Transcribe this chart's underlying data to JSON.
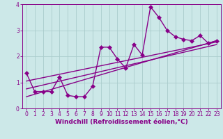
{
  "xlabel": "Windchill (Refroidissement éolien,°C)",
  "ylabel": "",
  "background_color": "#cce8e8",
  "line_color": "#880088",
  "marker": "D",
  "x_data": [
    0,
    1,
    2,
    3,
    4,
    5,
    6,
    7,
    8,
    9,
    10,
    11,
    12,
    13,
    14,
    15,
    16,
    17,
    18,
    19,
    20,
    21,
    22,
    23
  ],
  "y_data": [
    1.35,
    0.65,
    0.65,
    0.65,
    1.2,
    0.5,
    0.45,
    0.45,
    0.85,
    2.35,
    2.35,
    1.9,
    1.55,
    2.45,
    2.05,
    3.9,
    3.5,
    3.0,
    2.75,
    2.65,
    2.6,
    2.8,
    2.5,
    2.6
  ],
  "reg_lines": [
    {
      "x": [
        0,
        23
      ],
      "y": [
        0.45,
        2.6
      ]
    },
    {
      "x": [
        0,
        23
      ],
      "y": [
        0.75,
        2.45
      ]
    },
    {
      "x": [
        0,
        23
      ],
      "y": [
        1.05,
        2.55
      ]
    }
  ],
  "xlim": [
    -0.5,
    23.5
  ],
  "ylim": [
    0,
    4
  ],
  "xticks": [
    0,
    1,
    2,
    3,
    4,
    5,
    6,
    7,
    8,
    9,
    10,
    11,
    12,
    13,
    14,
    15,
    16,
    17,
    18,
    19,
    20,
    21,
    22,
    23
  ],
  "yticks": [
    0,
    1,
    2,
    3,
    4
  ],
  "grid_color": "#aacccc",
  "marker_size": 3,
  "line_width": 1.0,
  "tick_fontsize": 5.5,
  "xlabel_fontsize": 6.5
}
